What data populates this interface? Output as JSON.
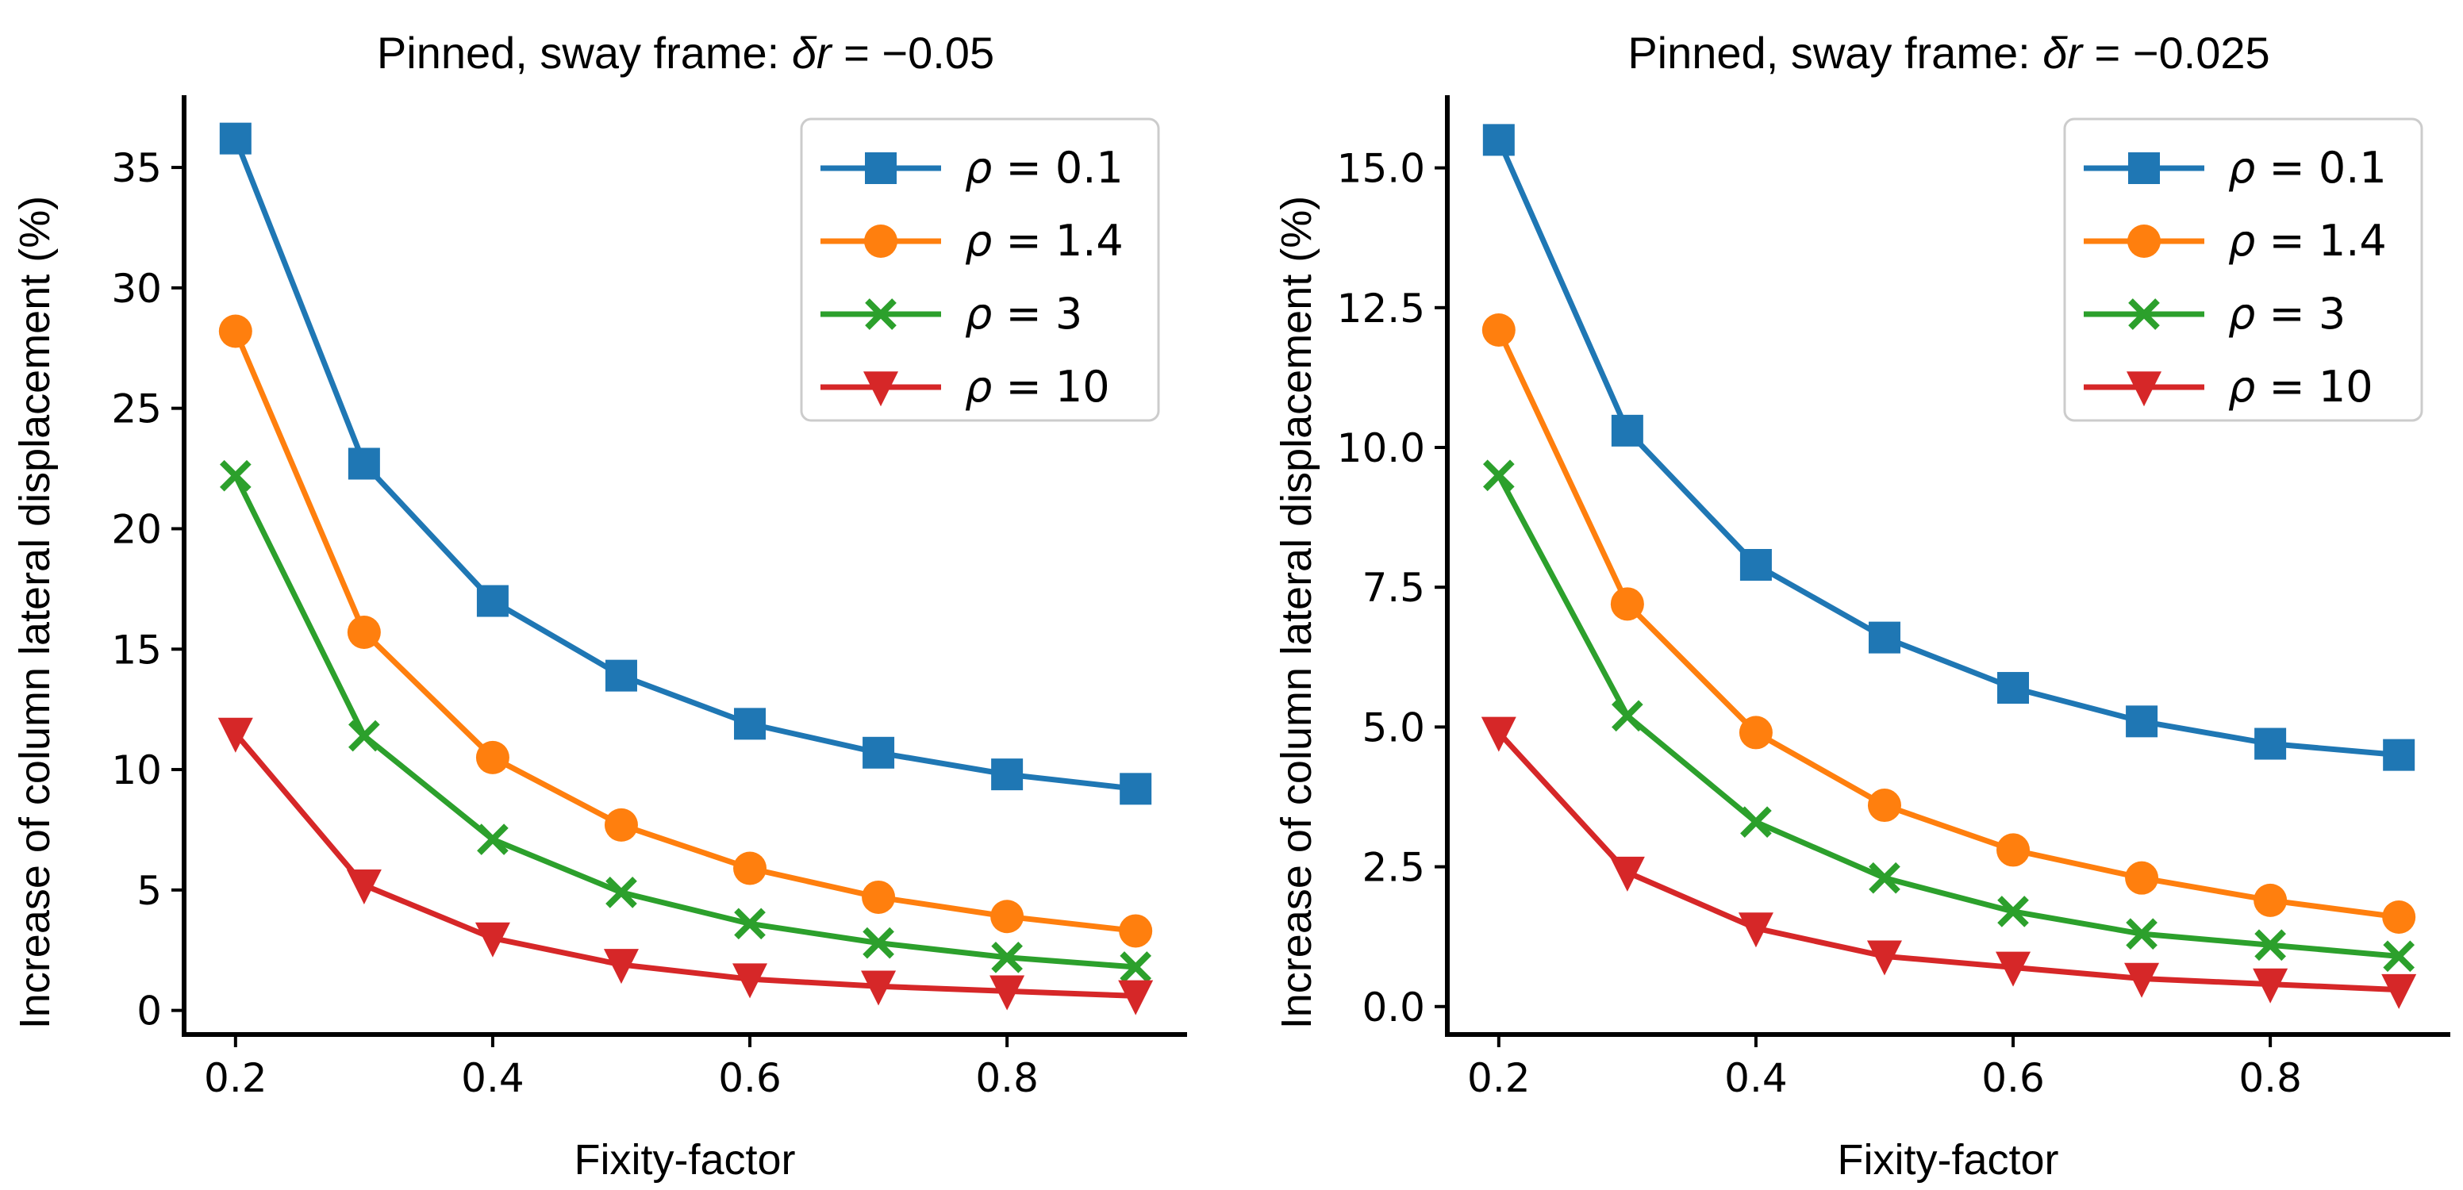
{
  "chart_data": [
    {
      "type": "line",
      "title_prefix": "Pinned, sway frame: ",
      "title_symbol": "δr",
      "title_value": " = −0.05",
      "xlabel": "Fixity-factor",
      "ylabel": "Increase of column lateral displacement (%)",
      "xlim": [
        0.16,
        0.94
      ],
      "ylim": [
        -1.0,
        38.0
      ],
      "xticks": [
        0.2,
        0.4,
        0.6,
        0.8
      ],
      "xtick_labels": [
        "0.2",
        "0.4",
        "0.6",
        "0.8"
      ],
      "yticks": [
        0,
        5,
        10,
        15,
        20,
        25,
        30,
        35
      ],
      "ytick_labels": [
        "0",
        "5",
        "10",
        "15",
        "20",
        "25",
        "30",
        "35"
      ],
      "legend_position": "top-right",
      "grid": false,
      "x": [
        0.2,
        0.3,
        0.4,
        0.5,
        0.6,
        0.7,
        0.8,
        0.9
      ],
      "series": [
        {
          "name_symbol": "ρ",
          "name_value": " = 0.1",
          "color": "#1f77b4",
          "marker": "square",
          "values": [
            36.2,
            22.7,
            17.0,
            13.9,
            11.9,
            10.7,
            9.8,
            9.2
          ]
        },
        {
          "name_symbol": "ρ",
          "name_value": " = 1.4",
          "color": "#ff7f0e",
          "marker": "circle",
          "values": [
            28.2,
            15.7,
            10.5,
            7.7,
            5.9,
            4.7,
            3.9,
            3.3
          ]
        },
        {
          "name_symbol": "ρ",
          "name_value": " = 3",
          "color": "#2ca02c",
          "marker": "x",
          "values": [
            22.2,
            11.4,
            7.1,
            4.9,
            3.6,
            2.8,
            2.2,
            1.8
          ]
        },
        {
          "name_symbol": "ρ",
          "name_value": " = 10",
          "color": "#d62728",
          "marker": "triangle-down",
          "values": [
            11.5,
            5.2,
            3.0,
            1.9,
            1.3,
            1.0,
            0.8,
            0.6
          ]
        }
      ]
    },
    {
      "type": "line",
      "title_prefix": "Pinned, sway frame: ",
      "title_symbol": "δr",
      "title_value": " = −0.025",
      "xlabel": "Fixity-factor",
      "ylabel": "Increase of column lateral displacement (%)",
      "xlim": [
        0.16,
        0.94
      ],
      "ylim": [
        -0.5,
        16.3
      ],
      "xticks": [
        0.2,
        0.4,
        0.6,
        0.8
      ],
      "xtick_labels": [
        "0.2",
        "0.4",
        "0.6",
        "0.8"
      ],
      "yticks": [
        0.0,
        2.5,
        5.0,
        7.5,
        10.0,
        12.5,
        15.0
      ],
      "ytick_labels": [
        "0.0",
        "2.5",
        "5.0",
        "7.5",
        "10.0",
        "12.5",
        "15.0"
      ],
      "legend_position": "top-right",
      "grid": false,
      "x": [
        0.2,
        0.3,
        0.4,
        0.5,
        0.6,
        0.7,
        0.8,
        0.9
      ],
      "series": [
        {
          "name_symbol": "ρ",
          "name_value": " = 0.1",
          "color": "#1f77b4",
          "marker": "square",
          "values": [
            15.5,
            10.3,
            7.9,
            6.6,
            5.7,
            5.1,
            4.7,
            4.5
          ]
        },
        {
          "name_symbol": "ρ",
          "name_value": " = 1.4",
          "color": "#ff7f0e",
          "marker": "circle",
          "values": [
            12.1,
            7.2,
            4.9,
            3.6,
            2.8,
            2.3,
            1.9,
            1.6
          ]
        },
        {
          "name_symbol": "ρ",
          "name_value": " = 3",
          "color": "#2ca02c",
          "marker": "x",
          "values": [
            9.5,
            5.2,
            3.3,
            2.3,
            1.7,
            1.3,
            1.1,
            0.9
          ]
        },
        {
          "name_symbol": "ρ",
          "name_value": " = 10",
          "color": "#d62728",
          "marker": "triangle-down",
          "values": [
            4.9,
            2.4,
            1.4,
            0.9,
            0.7,
            0.5,
            0.4,
            0.3
          ]
        }
      ]
    }
  ]
}
